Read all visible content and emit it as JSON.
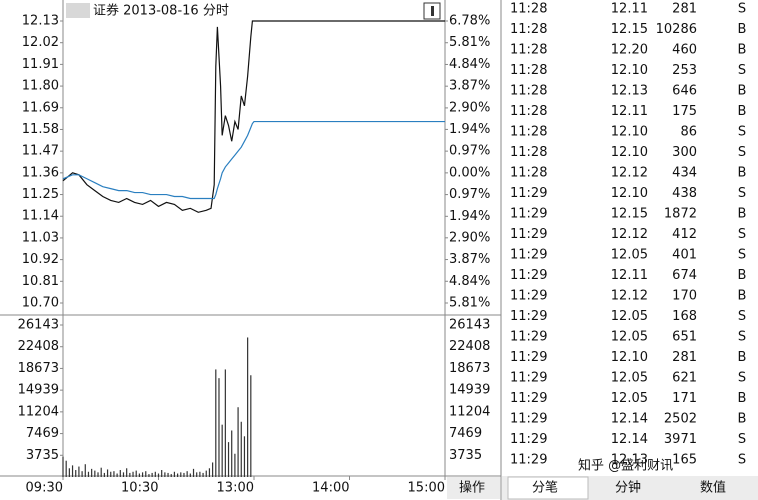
{
  "chart_data": [
    {
      "type": "line",
      "title": "证券 2013-08-16 分时",
      "x": [
        0,
        3,
        6,
        10,
        15,
        20,
        25,
        30,
        35,
        40,
        45,
        50,
        55,
        60,
        65,
        70,
        75,
        80,
        85,
        90,
        93,
        95,
        96,
        97,
        99,
        100,
        102,
        104,
        106,
        108,
        110,
        112,
        114,
        116,
        118,
        119,
        120,
        240
      ],
      "series": [
        {
          "color": "#111111",
          "values": [
            11.32,
            11.34,
            11.36,
            11.35,
            11.3,
            11.27,
            11.24,
            11.22,
            11.21,
            11.23,
            11.21,
            11.2,
            11.22,
            11.19,
            11.21,
            11.2,
            11.17,
            11.18,
            11.16,
            11.17,
            11.18,
            11.3,
            11.9,
            12.1,
            11.8,
            11.55,
            11.65,
            11.6,
            11.52,
            11.62,
            11.58,
            11.75,
            11.7,
            11.85,
            12.05,
            12.13,
            12.13,
            12.13
          ]
        },
        {
          "color": "#2a7fc0",
          "values": [
            11.33,
            11.34,
            11.35,
            11.35,
            11.33,
            11.31,
            11.29,
            11.28,
            11.27,
            11.27,
            11.26,
            11.26,
            11.25,
            11.25,
            11.25,
            11.24,
            11.24,
            11.23,
            11.23,
            11.23,
            11.23,
            11.23,
            11.25,
            11.28,
            11.33,
            11.36,
            11.39,
            11.41,
            11.43,
            11.45,
            11.47,
            11.49,
            11.52,
            11.55,
            11.59,
            11.61,
            11.62,
            11.62
          ]
        }
      ],
      "xlim": [
        0,
        240
      ],
      "xticks": [
        {
          "value": 0,
          "label": "09:30"
        },
        {
          "value": 60,
          "label": "10:30"
        },
        {
          "value": 120,
          "label": "13:00"
        },
        {
          "value": 180,
          "label": "14:00"
        },
        {
          "value": 240,
          "label": "15:00"
        }
      ],
      "ylim": [
        10.7,
        12.13
      ],
      "yticks": [
        12.13,
        12.02,
        11.91,
        {
          "value": 11.8,
          "label": "11.80"
        },
        11.69,
        11.58,
        11.47,
        11.36,
        11.25,
        11.14,
        11.03,
        10.92,
        10.81,
        {
          "value": 10.7,
          "label": "10.70"
        }
      ],
      "y2lim": [
        -5.81,
        6.78
      ],
      "y2ticks": [
        {
          "value": 6.78,
          "label": "6.78%"
        },
        {
          "value": 5.81,
          "label": "5.81%"
        },
        {
          "value": 4.84,
          "label": "4.84%"
        },
        {
          "value": 3.87,
          "label": "3.87%"
        },
        {
          "value": 2.9,
          "label": "2.90%"
        },
        {
          "value": 1.94,
          "label": "1.94%"
        },
        {
          "value": 0.97,
          "label": "0.97%"
        },
        {
          "value": 0,
          "label": "0.00%"
        },
        {
          "value": -0.97,
          "label": "0.97%"
        },
        {
          "value": -1.94,
          "label": "1.94%"
        },
        {
          "value": -2.9,
          "label": "2.90%"
        },
        {
          "value": -3.87,
          "label": "3.87%"
        },
        {
          "value": -4.84,
          "label": "4.84%"
        },
        {
          "value": -5.81,
          "label": "5.81%"
        }
      ],
      "up_color": "#e0302a",
      "down_color": "#1f9a1f",
      "flat_color": "#111111"
    },
    {
      "type": "bar",
      "color": "#333333",
      "x": [
        0,
        2,
        4,
        6,
        8,
        10,
        12,
        14,
        16,
        18,
        20,
        22,
        24,
        26,
        28,
        30,
        32,
        34,
        36,
        38,
        40,
        42,
        44,
        46,
        48,
        50,
        52,
        54,
        56,
        58,
        60,
        62,
        64,
        66,
        68,
        70,
        72,
        74,
        76,
        78,
        80,
        82,
        84,
        86,
        88,
        90,
        92,
        94,
        96,
        98,
        100,
        102,
        104,
        106,
        108,
        110,
        112,
        114,
        116,
        118
      ],
      "values": [
        3500,
        2800,
        1500,
        2000,
        1200,
        1800,
        1000,
        2200,
        900,
        1400,
        1100,
        800,
        1600,
        700,
        1300,
        900,
        1000,
        600,
        1200,
        800,
        1500,
        700,
        900,
        1100,
        600,
        800,
        1000,
        500,
        700,
        900,
        600,
        1200,
        800,
        700,
        500,
        900,
        600,
        800,
        700,
        1000,
        600,
        1400,
        800,
        900,
        700,
        1100,
        1500,
        2500,
        18500,
        17000,
        9000,
        18500,
        6000,
        8000,
        4000,
        12000,
        9500,
        7000,
        24000,
        17500
      ],
      "xlim": [
        0,
        240
      ],
      "ylim": [
        0,
        26143
      ],
      "yticks": [
        26143,
        22408,
        18673,
        14939,
        11204,
        7469,
        3735
      ]
    }
  ],
  "trades": {
    "price_color": "#e0302a",
    "rows": [
      {
        "time": "11:28",
        "price": "12.11",
        "volume": "281",
        "side": "S",
        "volume_color": "#333333",
        "side_color": "#1f9a1f"
      },
      {
        "time": "11:28",
        "price": "12.15",
        "volume": "10286",
        "side": "B",
        "volume_color": "#a020b0",
        "side_color": "#e0302a"
      },
      {
        "time": "11:28",
        "price": "12.20",
        "volume": "460",
        "side": "B",
        "volume_color": "#333333",
        "side_color": "#e0302a"
      },
      {
        "time": "11:28",
        "price": "12.10",
        "volume": "253",
        "side": "S",
        "volume_color": "#333333",
        "side_color": "#1f9a1f"
      },
      {
        "time": "11:28",
        "price": "12.13",
        "volume": "646",
        "side": "B",
        "volume_color": "#a020b0",
        "side_color": "#e0302a"
      },
      {
        "time": "11:28",
        "price": "12.11",
        "volume": "175",
        "side": "B",
        "volume_color": "#333333",
        "side_color": "#e0302a"
      },
      {
        "time": "11:28",
        "price": "12.10",
        "volume": "86",
        "side": "S",
        "volume_color": "#333333",
        "side_color": "#1f9a1f"
      },
      {
        "time": "11:28",
        "price": "12.10",
        "volume": "300",
        "side": "S",
        "volume_color": "#333333",
        "side_color": "#1f9a1f"
      },
      {
        "time": "11:28",
        "price": "12.12",
        "volume": "434",
        "side": "B",
        "volume_color": "#333333",
        "side_color": "#e0302a"
      },
      {
        "time": "11:29",
        "price": "12.10",
        "volume": "438",
        "side": "S",
        "volume_color": "#333333",
        "side_color": "#1f9a1f"
      },
      {
        "time": "11:29",
        "price": "12.15",
        "volume": "1872",
        "side": "B",
        "volume_color": "#a020b0",
        "side_color": "#e0302a"
      },
      {
        "time": "11:29",
        "price": "12.12",
        "volume": "412",
        "side": "S",
        "volume_color": "#333333",
        "side_color": "#1f9a1f"
      },
      {
        "time": "11:29",
        "price": "12.05",
        "volume": "401",
        "side": "S",
        "volume_color": "#333333",
        "side_color": "#1f9a1f"
      },
      {
        "time": "11:29",
        "price": "12.11",
        "volume": "674",
        "side": "B",
        "volume_color": "#a020b0",
        "side_color": "#e0302a"
      },
      {
        "time": "11:29",
        "price": "12.12",
        "volume": "170",
        "side": "B",
        "volume_color": "#333333",
        "side_color": "#e0302a"
      },
      {
        "time": "11:29",
        "price": "12.05",
        "volume": "168",
        "side": "S",
        "volume_color": "#333333",
        "side_color": "#1f9a1f"
      },
      {
        "time": "11:29",
        "price": "12.05",
        "volume": "651",
        "side": "S",
        "volume_color": "#a020b0",
        "side_color": "#1f9a1f"
      },
      {
        "time": "11:29",
        "price": "12.10",
        "volume": "281",
        "side": "B",
        "volume_color": "#333333",
        "side_color": "#e0302a"
      },
      {
        "time": "11:29",
        "price": "12.05",
        "volume": "621",
        "side": "S",
        "volume_color": "#a020b0",
        "side_color": "#1f9a1f"
      },
      {
        "time": "11:29",
        "price": "12.05",
        "volume": "171",
        "side": "B",
        "volume_color": "#333333",
        "side_color": "#e0302a"
      },
      {
        "time": "11:29",
        "price": "12.14",
        "volume": "2502",
        "side": "B",
        "volume_color": "#a020b0",
        "side_color": "#e0302a"
      },
      {
        "time": "11:29",
        "price": "12.14",
        "volume": "3971",
        "side": "S",
        "volume_color": "#a020b0",
        "side_color": "#1f9a1f"
      },
      {
        "time": "11:29",
        "price": "12.13",
        "volume": "165",
        "side": "S",
        "volume_color": "#333333",
        "side_color": "#1f9a1f"
      }
    ]
  },
  "tabs": [
    "分笔",
    "分钟",
    "数值"
  ],
  "action_button": "操作",
  "watermark": "知乎 @盛利财讯"
}
